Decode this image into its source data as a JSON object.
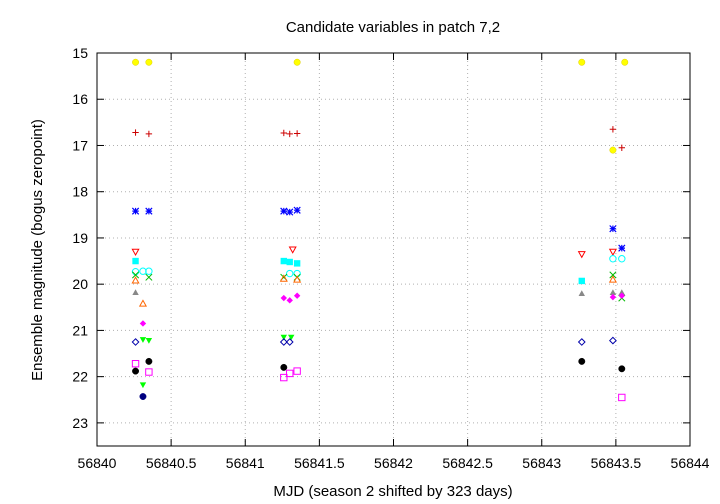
{
  "chart_data": {
    "type": "scatter",
    "title": "Candidate variables in patch 7,2",
    "xlabel": "MJD (season 2 shifted by 323 days)",
    "ylabel": "Ensemble magnitude (bogus zeropoint)",
    "xlim": [
      56840,
      56844
    ],
    "ylim": [
      15,
      23.5
    ],
    "y_inverted": true,
    "grid": true,
    "legend": "none",
    "x_ticks": [
      56840,
      56840.5,
      56841,
      56841.5,
      56842,
      56842.5,
      56843,
      56843.5,
      56844
    ],
    "x_tick_labels": [
      "56840",
      "56840.5",
      "56841",
      "56841.5",
      "56842",
      "56842.5",
      "56843",
      "56843.5",
      "56844"
    ],
    "y_ticks": [
      15,
      16,
      17,
      18,
      19,
      20,
      21,
      22,
      23
    ],
    "y_tick_labels": [
      "15",
      "16",
      "17",
      "18",
      "19",
      "20",
      "21",
      "22",
      "23"
    ],
    "series": [
      {
        "marker": "filled-circle",
        "color": "#ffff00",
        "x": [
          56840.26,
          56840.35,
          56841.35,
          56843.27,
          56843.56,
          56843.48
        ],
        "y": [
          15.2,
          15.2,
          15.2,
          15.2,
          15.2,
          17.1
        ]
      },
      {
        "marker": "plus",
        "color": "#cc0000",
        "x": [
          56840.26,
          56840.35,
          56841.26,
          56841.3,
          56841.35,
          56843.48,
          56843.54
        ],
        "y": [
          16.72,
          16.75,
          16.73,
          16.75,
          16.74,
          16.65,
          17.05
        ]
      },
      {
        "marker": "asterisk",
        "color": "#0000ff",
        "x": [
          56840.26,
          56840.35,
          56841.26,
          56841.3,
          56841.35,
          56843.48,
          56843.54
        ],
        "y": [
          18.42,
          18.42,
          18.42,
          18.44,
          18.4,
          18.8,
          19.22
        ]
      },
      {
        "marker": "triangle-down-open",
        "color": "#ff0000",
        "x": [
          56840.26,
          56841.32,
          56843.27,
          56843.48
        ],
        "y": [
          19.3,
          19.25,
          19.35,
          19.3
        ]
      },
      {
        "marker": "filled-square",
        "color": "#00ffff",
        "x": [
          56840.26,
          56841.26,
          56841.3,
          56841.35,
          56843.27
        ],
        "y": [
          19.5,
          19.5,
          19.52,
          19.55,
          19.93
        ]
      },
      {
        "marker": "circle-open",
        "color": "#00ffff",
        "x": [
          56840.26,
          56840.31,
          56840.35,
          56841.3,
          56841.35,
          56843.48,
          56843.54
        ],
        "y": [
          19.73,
          19.72,
          19.72,
          19.77,
          19.77,
          19.45,
          19.45
        ]
      },
      {
        "marker": "x",
        "color": "#00bb00",
        "x": [
          56840.26,
          56840.35,
          56841.26,
          56841.35,
          56843.48,
          56843.54
        ],
        "y": [
          19.8,
          19.85,
          19.85,
          19.85,
          19.8,
          20.3
        ]
      },
      {
        "marker": "triangle-up-open",
        "color": "#ff6600",
        "x": [
          56840.26,
          56840.31,
          56841.26,
          56841.35,
          56843.48
        ],
        "y": [
          19.92,
          20.42,
          19.88,
          19.9,
          19.9
        ]
      },
      {
        "marker": "triangle-up",
        "color": "#888888",
        "x": [
          56840.26,
          56843.27,
          56843.48,
          56843.54
        ],
        "y": [
          20.18,
          20.2,
          20.18,
          20.18
        ]
      },
      {
        "marker": "filled-diamond",
        "color": "#ff00ff",
        "x": [
          56840.31,
          56841.26,
          56841.3,
          56841.35,
          56843.48,
          56843.54
        ],
        "y": [
          20.85,
          20.3,
          20.35,
          20.25,
          20.28,
          20.25
        ]
      },
      {
        "marker": "triangle-down",
        "color": "#00ff00",
        "x": [
          56840.31,
          56840.35,
          56841.26,
          56841.31,
          56840.31
        ],
        "y": [
          21.2,
          21.22,
          21.15,
          21.15,
          22.18
        ]
      },
      {
        "marker": "diamond-open",
        "color": "#0000aa",
        "x": [
          56840.26,
          56841.26,
          56841.3,
          56843.27,
          56843.48
        ],
        "y": [
          21.25,
          21.25,
          21.25,
          21.25,
          21.22
        ]
      },
      {
        "marker": "filled-circle",
        "color": "#000000",
        "x": [
          56840.26,
          56840.35,
          56841.26,
          56843.27,
          56843.54
        ],
        "y": [
          21.88,
          21.67,
          21.8,
          21.67,
          21.83
        ]
      },
      {
        "marker": "square-open",
        "color": "#ff00ff",
        "x": [
          56840.26,
          56840.35,
          56841.26,
          56841.3,
          56841.35,
          56843.54
        ],
        "y": [
          21.72,
          21.9,
          22.02,
          21.93,
          21.88,
          22.45
        ]
      },
      {
        "marker": "filled-circle",
        "color": "#000080",
        "x": [
          56840.31
        ],
        "y": [
          22.43
        ]
      }
    ]
  }
}
